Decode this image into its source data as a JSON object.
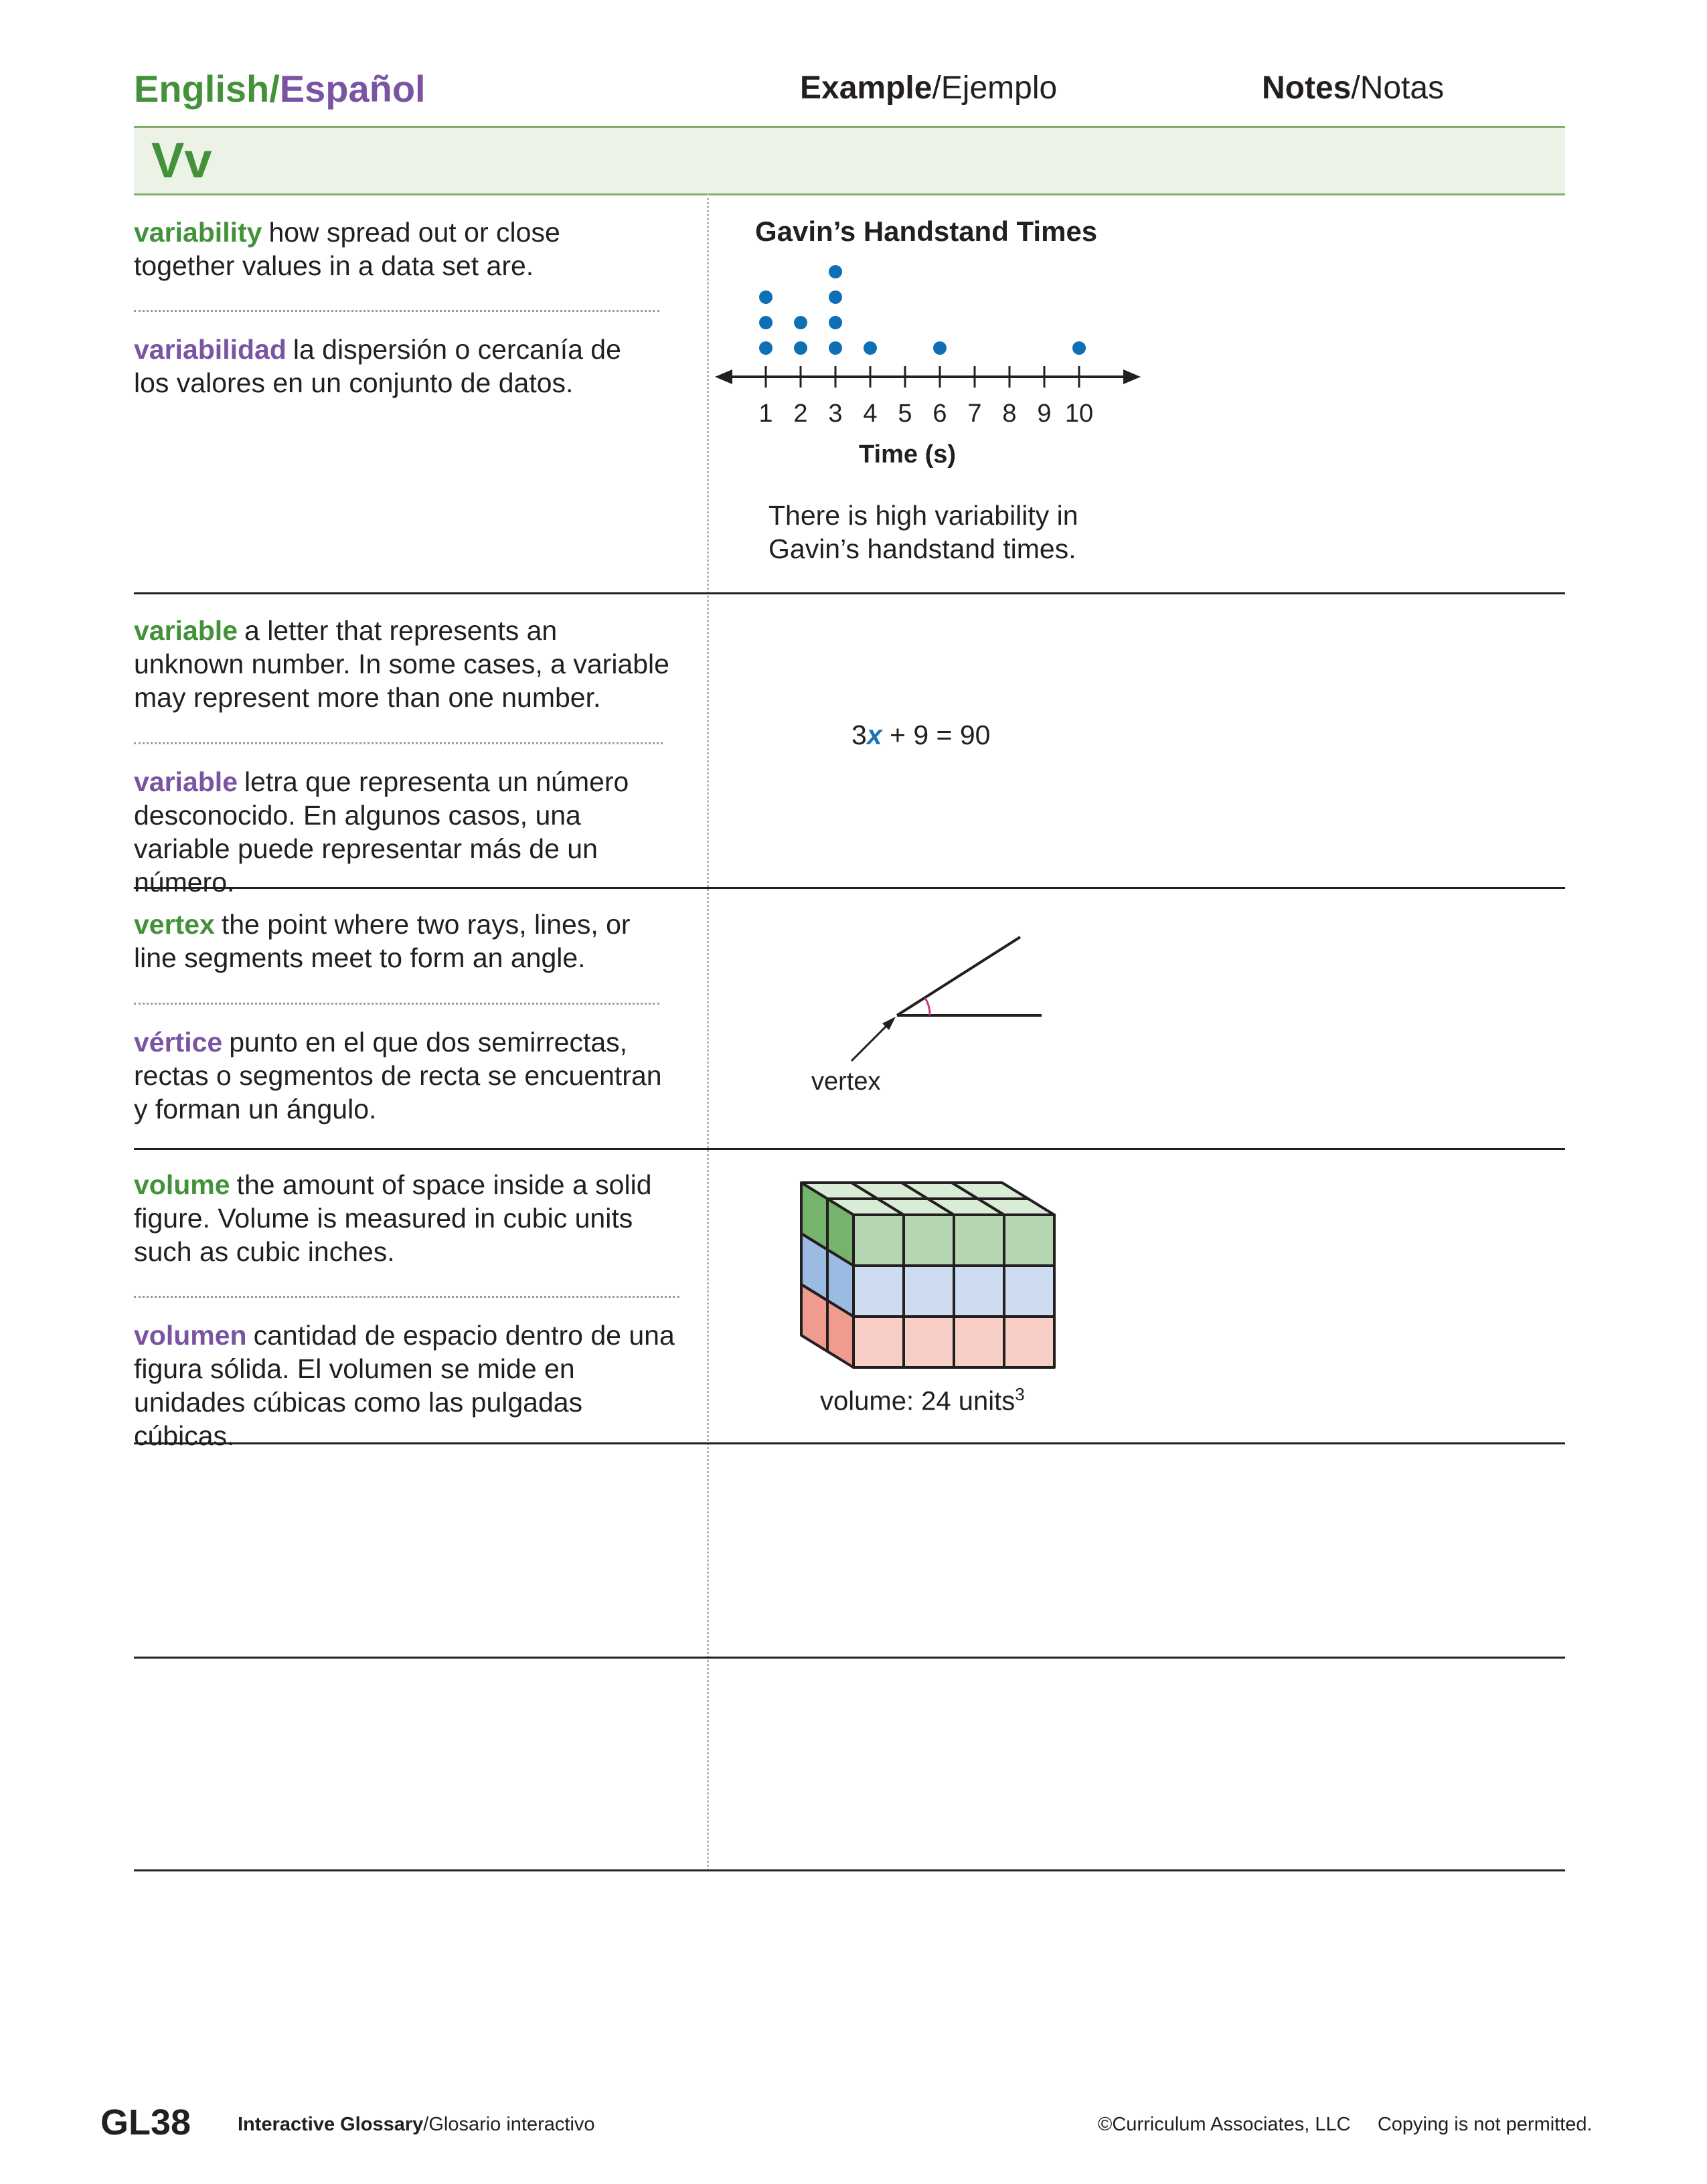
{
  "header": {
    "lang_en": "English",
    "lang_slash": "/",
    "lang_es": "Español",
    "example_bold": "Example",
    "example_rest": "/Ejemplo",
    "notes_bold": "Notes",
    "notes_rest": "/Notas",
    "section_letter": "Vv"
  },
  "entries": {
    "variability": {
      "term_en": "variability",
      "def_en": "how spread out or close together values in a data set are.",
      "term_es": "variabilidad",
      "def_es": "la dispersión o cercanía de los valores en un conjunto de datos.",
      "example_text": "There is high variability in Gavin’s handstand times."
    },
    "variable": {
      "term_en": "variable",
      "def_en": "a letter that represents an unknown number. In some cases, a variable may represent more than one number.",
      "term_es": "variable",
      "def_es": "letra que representa un número desconocido. En algunos casos, una variable puede representar más de un número.",
      "eq_coef": "3",
      "eq_var": "x",
      "eq_rest": " + 9 = 90"
    },
    "vertex": {
      "term_en": "vertex",
      "def_en": "the point where two rays, lines, or line segments meet to form an angle.",
      "term_es": "vértice",
      "def_es": "punto en el que dos semirrectas, rectas o segmentos de recta se encuentran y forman un ángulo.",
      "label": "vertex"
    },
    "volume": {
      "term_en": "volume",
      "def_en": "the amount of space inside a solid figure. Volume is measured in cubic units such as cubic inches.",
      "term_es": "volumen",
      "def_es": "cantidad de espacio dentro de una figura sólida. El volumen se mide en unidades cúbicas como las pulgadas cúbicas.",
      "caption": "volume: 24 units",
      "caption_sup": "3"
    }
  },
  "chart_data": {
    "type": "scatter",
    "title": "Gavin’s Handstand Times",
    "xlabel": "Time (s)",
    "ylabel": "",
    "xlim": [
      1,
      10
    ],
    "x_ticks": [
      1,
      2,
      3,
      4,
      5,
      6,
      7,
      8,
      9,
      10
    ],
    "points": [
      {
        "x": 1,
        "count": 3
      },
      {
        "x": 2,
        "count": 2
      },
      {
        "x": 3,
        "count": 4
      },
      {
        "x": 4,
        "count": 1
      },
      {
        "x": 6,
        "count": 1
      },
      {
        "x": 10,
        "count": 1
      }
    ],
    "dot_color": "#0f6fb5"
  },
  "colors": {
    "green": "#43923a",
    "purple": "#7a54a3",
    "band_bg": "#ecf3e6",
    "cube_green": "#b5d6b0",
    "cube_blue": "#cddcf0",
    "cube_red": "#f7cfc6"
  },
  "footer": {
    "page": "GL38",
    "gloss_bold": "Interactive Glossary",
    "gloss_rest": "/Glosario interactivo",
    "copyright": "©Curriculum Associates, LLC     Copying is not permitted."
  }
}
